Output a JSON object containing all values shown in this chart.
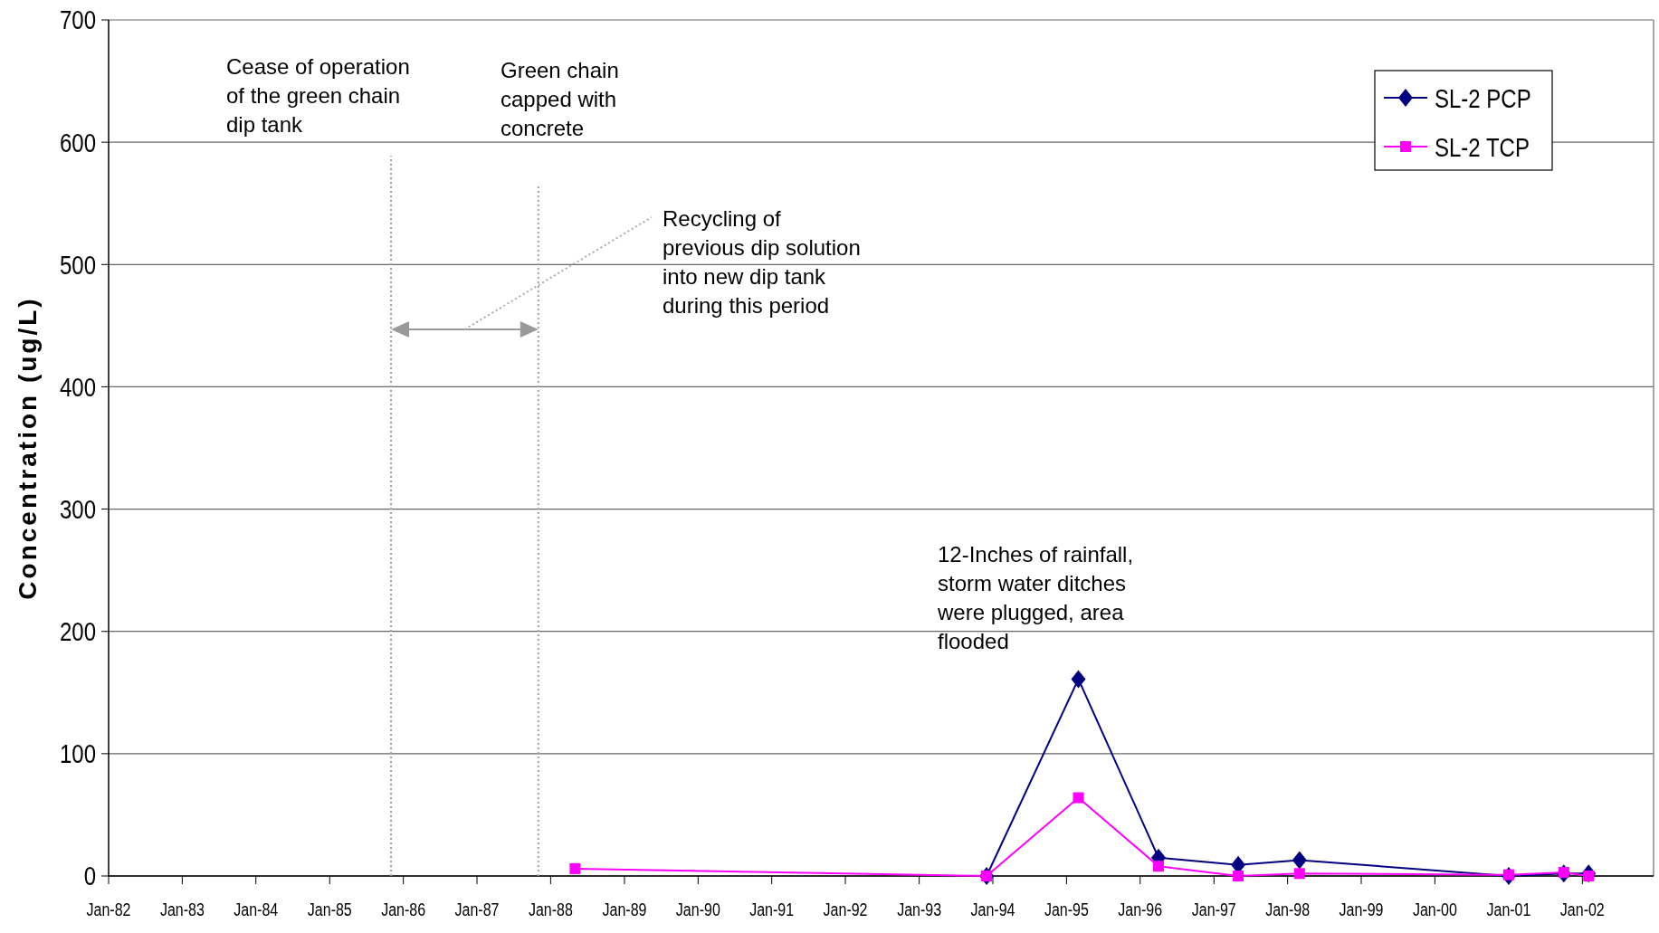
{
  "chart_data": {
    "type": "line",
    "ylabel": "Concentration (ug/L)",
    "xlim": [
      "1982-01-01",
      "2002-12-20"
    ],
    "xticks": [
      {
        "value": "1982-01",
        "label": "Jan-82"
      },
      {
        "value": "1983-01",
        "label": "Jan-83"
      },
      {
        "value": "1984-01",
        "label": "Jan-84"
      },
      {
        "value": "1985-01",
        "label": "Jan-85"
      },
      {
        "value": "1986-01",
        "label": "Jan-86"
      },
      {
        "value": "1987-01",
        "label": "Jan-87"
      },
      {
        "value": "1988-01",
        "label": "Jan-88"
      },
      {
        "value": "1989-01",
        "label": "Jan-89"
      },
      {
        "value": "1990-01",
        "label": "Jan-90"
      },
      {
        "value": "1991-01",
        "label": "Jan-91"
      },
      {
        "value": "1992-01",
        "label": "Jan-92"
      },
      {
        "value": "1993-01",
        "label": "Jan-93"
      },
      {
        "value": "1994-01",
        "label": "Jan-94"
      },
      {
        "value": "1995-01",
        "label": "Jan-95"
      },
      {
        "value": "1996-01",
        "label": "Jan-96"
      },
      {
        "value": "1997-01",
        "label": "Jan-97"
      },
      {
        "value": "1998-01",
        "label": "Jan-98"
      },
      {
        "value": "1999-01",
        "label": "Jan-99"
      },
      {
        "value": "2000-01",
        "label": "Jan-00"
      },
      {
        "value": "2001-01",
        "label": "Jan-01"
      },
      {
        "value": "2002-01",
        "label": "Jan-02"
      }
    ],
    "ylim": [
      0,
      700
    ],
    "yticks": [
      0,
      100,
      200,
      300,
      400,
      500,
      600,
      700
    ],
    "grid": "y",
    "legend": "top right",
    "series": [
      {
        "name": "SL-2 PCP",
        "color": "#000080",
        "marker": "diamond",
        "x": [
          "1993-12",
          "1995-03",
          "1996-04",
          "1997-05",
          "1998-03",
          "2001-01",
          "2001-10",
          "2002-02"
        ],
        "values": [
          0,
          161,
          15,
          9,
          13,
          0,
          2,
          2
        ]
      },
      {
        "name": "SL-2 TCP",
        "color": "#ff00ff",
        "marker": "square",
        "x": [
          "1988-05",
          "1993-12",
          "1995-03",
          "1996-04",
          "1997-05",
          "1998-03",
          "2001-01",
          "2001-10",
          "2002-02"
        ],
        "values": [
          6,
          0,
          64,
          8,
          0,
          2,
          1,
          3,
          0
        ]
      }
    ],
    "ref_lines": [
      {
        "axis": "x",
        "value": "1985-11",
        "color": "#a0a0a0",
        "line_style": "dotted"
      },
      {
        "axis": "x",
        "value": "1987-11",
        "color": "#a0a0a0",
        "line_style": "dotted"
      }
    ],
    "annotations": [
      "Cease of operation\nof the green chain\ndip tank",
      "Green chain\ncapped with\nconcrete",
      "Recycling of\nprevious dip solution\ninto new dip tank\nduring this period",
      "12-Inches of rainfall,\nstorm water ditches\nwere plugged, area\nflooded"
    ]
  }
}
